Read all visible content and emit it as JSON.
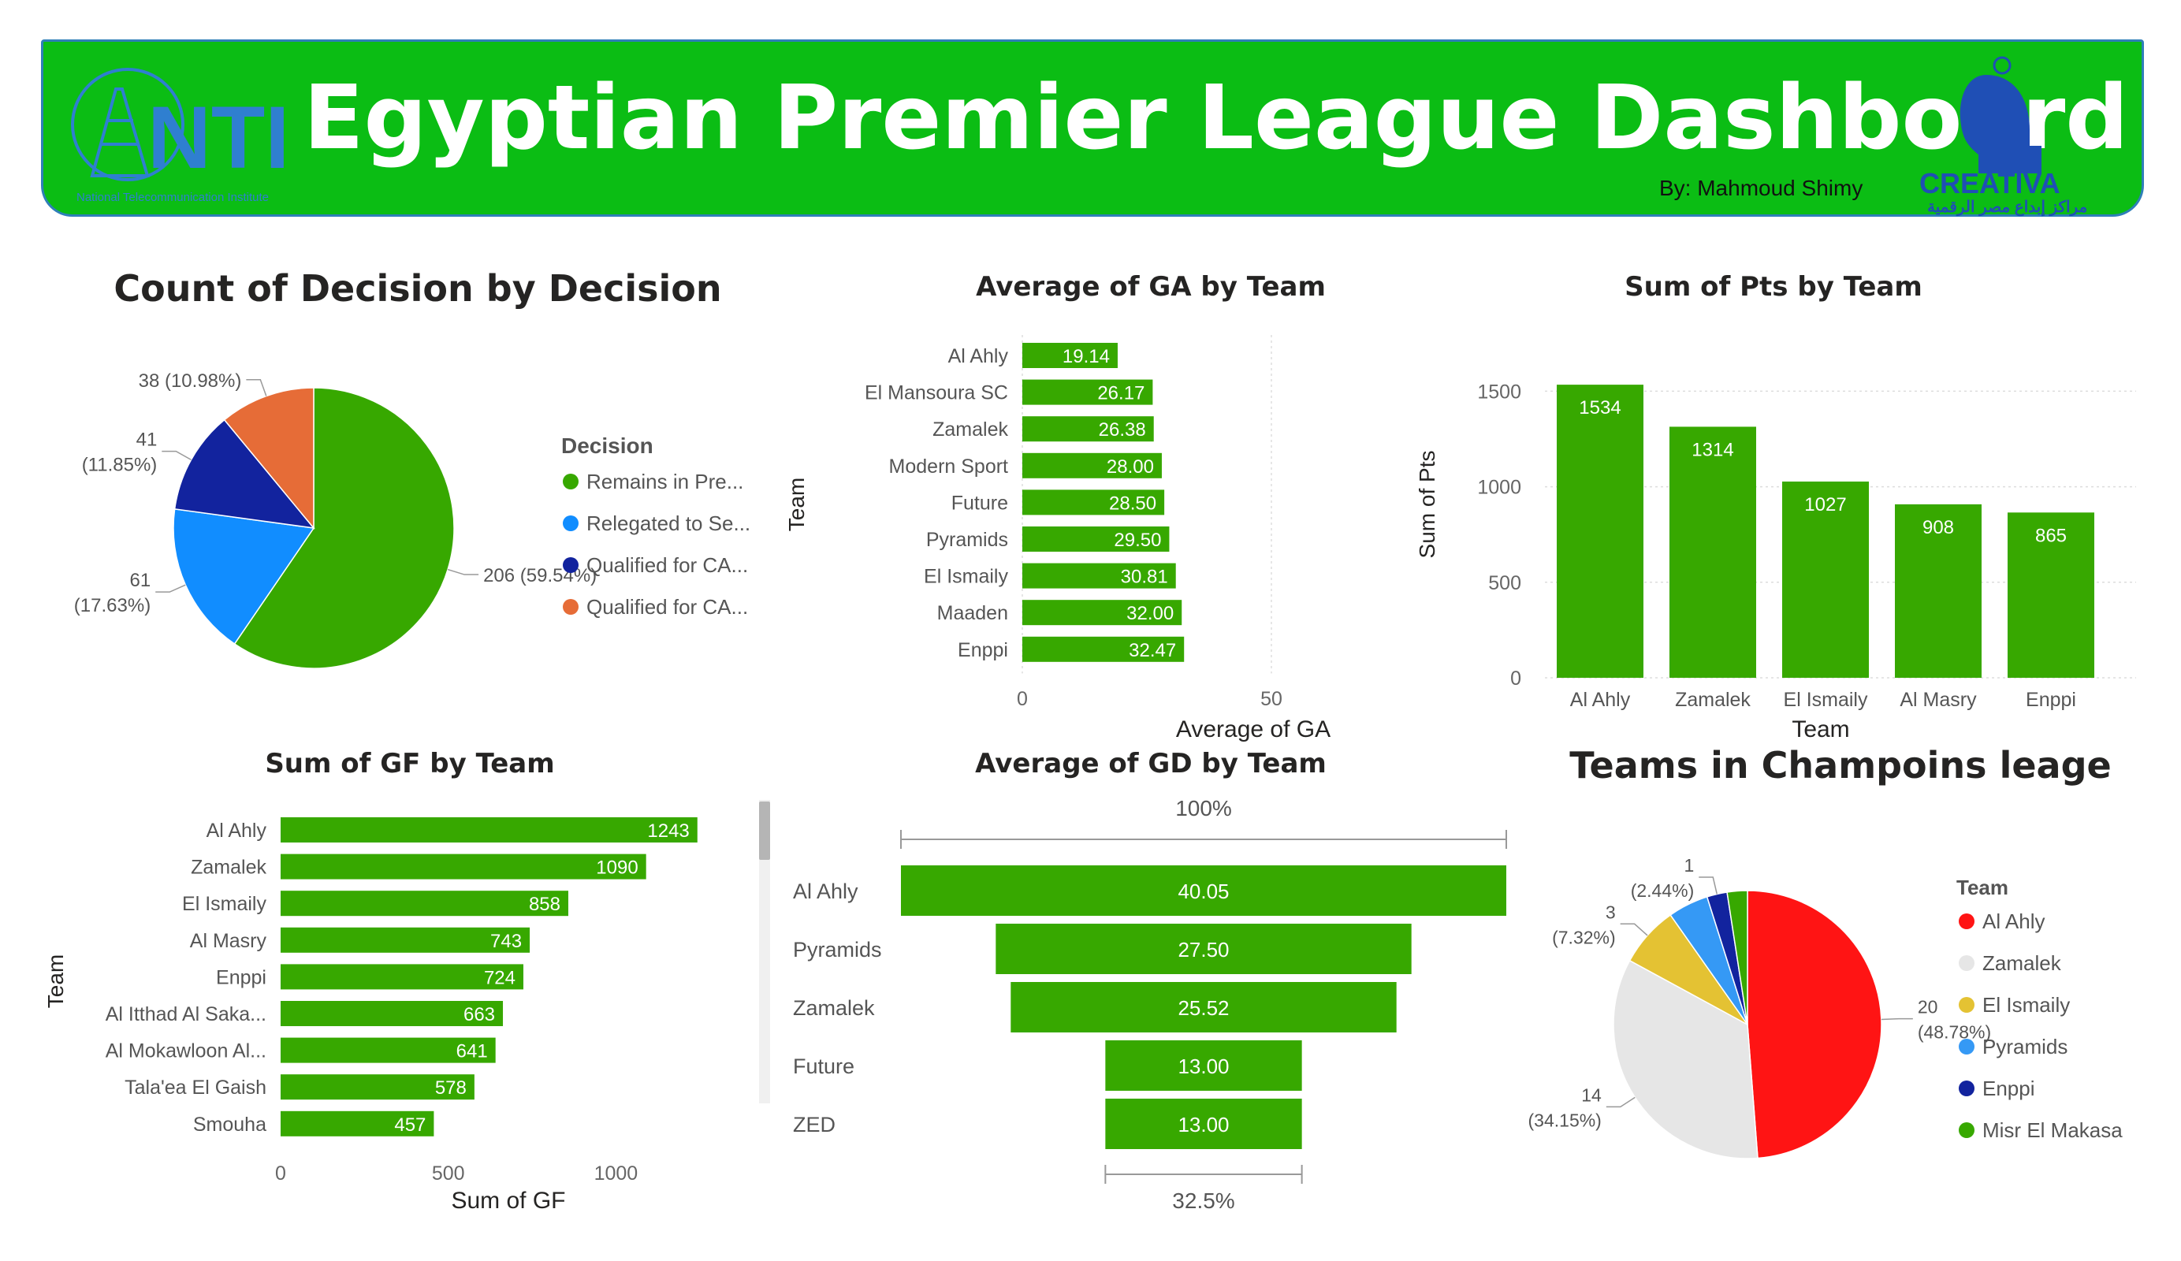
{
  "header": {
    "title": "Egyptian Premier League Dashboard",
    "author": "By: Mahmoud Shimy",
    "nti_logo_text": "NTI",
    "nti_logo_subtitle": "National Telecommunication Institute",
    "creativa_logo_text": "CREATIVA",
    "creativa_logo_subtitle": "مراكز إبداع مصر الرقمية"
  },
  "colors": {
    "header_bg": "#0bbd14",
    "bar_green": "#37a800",
    "pie_green": "#37a800",
    "pie_blue": "#118dff",
    "pie_navy": "#12239e",
    "pie_orange": "#e66c37",
    "red": "#ff1414",
    "light_gray": "#e6e6e6",
    "yellow": "#e4c233"
  },
  "chart_data": [
    {
      "id": "decision",
      "type": "pie",
      "title": "Count of Decision by Decision",
      "legend_title": "Decision",
      "categories": [
        "Remains in Pre...",
        "Relegated to Se...",
        "Qualified for CA...",
        "Qualified for CA..."
      ],
      "values": [
        206,
        61,
        41,
        38
      ],
      "data_labels": [
        "206 (59.54%)",
        "61 (17.63%)",
        "41 (11.85%)",
        "38 (10.98%)"
      ],
      "colors": [
        "#37a800",
        "#118dff",
        "#12239e",
        "#e66c37"
      ]
    },
    {
      "id": "ga",
      "type": "bar",
      "orientation": "horizontal",
      "title": "Average of GA by Team",
      "xlabel": "Average of GA",
      "ylabel": "Team",
      "categories": [
        "Al Ahly",
        "El Mansoura SC",
        "Zamalek",
        "Modern Sport",
        "Future",
        "Pyramids",
        "El Ismaily",
        "Maaden",
        "Enppi"
      ],
      "values": [
        19.14,
        26.17,
        26.38,
        28.0,
        28.5,
        29.5,
        30.81,
        32.0,
        32.47
      ],
      "data_labels": [
        "19.14",
        "26.17",
        "26.38",
        "28.00",
        "28.50",
        "29.50",
        "30.81",
        "32.00",
        "32.47"
      ],
      "xticks": [
        "0",
        "50"
      ],
      "xlim": [
        0,
        50
      ]
    },
    {
      "id": "pts",
      "type": "bar",
      "orientation": "vertical",
      "title": "Sum of Pts by Team",
      "xlabel": "Team",
      "ylabel": "Sum of Pts",
      "categories": [
        "Al Ahly",
        "Zamalek",
        "El Ismaily",
        "Al Masry",
        "Enppi"
      ],
      "values": [
        1534,
        1314,
        1027,
        908,
        865
      ],
      "data_labels": [
        "1534",
        "1314",
        "1027",
        "908",
        "865"
      ],
      "yticks": [
        "0",
        "500",
        "1000",
        "1500"
      ],
      "ylim": [
        0,
        1650
      ]
    },
    {
      "id": "gf",
      "type": "bar",
      "orientation": "horizontal",
      "title": "Sum of GF by Team",
      "xlabel": "Sum of GF",
      "ylabel": "Team",
      "categories": [
        "Al Ahly",
        "Zamalek",
        "El Ismaily",
        "Al Masry",
        "Enppi",
        "Al Itthad Al Saka...",
        "Al Mokawloon Al...",
        "Tala'ea El Gaish",
        "Smouha"
      ],
      "values": [
        1243,
        1090,
        858,
        743,
        724,
        663,
        641,
        578,
        457
      ],
      "data_labels": [
        "1243",
        "1090",
        "858",
        "743",
        "724",
        "663",
        "641",
        "578",
        "457"
      ],
      "xticks": [
        "0",
        "500",
        "1000"
      ],
      "xlim": [
        0,
        1260
      ]
    },
    {
      "id": "gd",
      "type": "bar",
      "orientation": "funnel",
      "title": "Average of GD by Team",
      "categories": [
        "Al Ahly",
        "Pyramids",
        "Zamalek",
        "Future",
        "ZED"
      ],
      "values": [
        40.05,
        27.5,
        25.52,
        13.0,
        13.0
      ],
      "data_labels": [
        "40.05",
        "27.50",
        "25.52",
        "13.00",
        "13.00"
      ],
      "top_label": "100%",
      "bottom_label": "32.5%"
    },
    {
      "id": "champions",
      "type": "pie",
      "title": "Teams in Champoins leage",
      "legend_title": "Team",
      "categories": [
        "Al Ahly",
        "Zamalek",
        "El Ismaily",
        "Pyramids",
        "Enppi",
        "Misr El Makasa"
      ],
      "values": [
        20,
        14,
        3,
        2,
        1,
        1
      ],
      "data_labels": [
        "20 (48.78%)",
        "14 (34.15%)",
        "3 (7.32%)",
        "",
        "1 (2.44%)",
        ""
      ],
      "colors": [
        "#ff1414",
        "#e6e6e6",
        "#e4c233",
        "#3599f5",
        "#12239e",
        "#37a800"
      ]
    }
  ]
}
